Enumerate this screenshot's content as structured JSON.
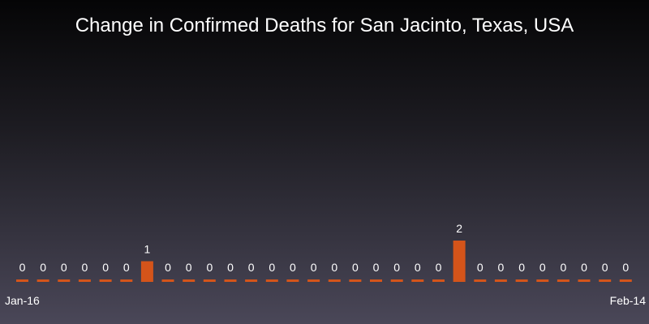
{
  "chart_data": {
    "type": "bar",
    "title": "Change in Confirmed Deaths for San Jacinto, Texas, USA",
    "x_start": "Jan-16",
    "x_end": "Feb-14",
    "x_tick_labels": [
      "Jan-16",
      "Feb-14"
    ],
    "values": [
      0,
      0,
      0,
      0,
      0,
      0,
      1,
      0,
      0,
      0,
      0,
      0,
      0,
      0,
      0,
      0,
      0,
      0,
      0,
      0,
      0,
      2,
      0,
      0,
      0,
      0,
      0,
      0,
      0,
      0
    ],
    "ylim": [
      0,
      2
    ],
    "grid": false,
    "legend": "none",
    "bar_color": "#d4541a",
    "label_color": "#ffffff"
  }
}
